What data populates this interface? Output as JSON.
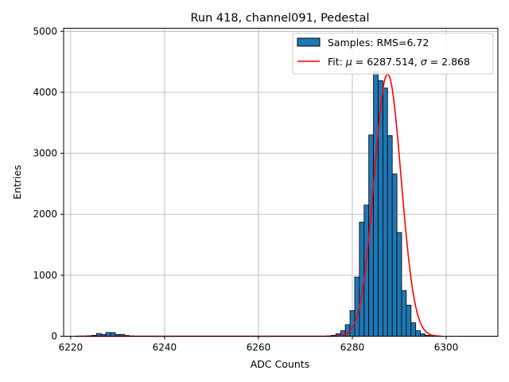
{
  "chart_data": {
    "type": "bar",
    "title": "Run 418, channel091, Pedestal",
    "xlabel": "ADC Counts",
    "ylabel": "Entries",
    "xlim": [
      6218.5,
      6311.0
    ],
    "ylim": [
      0,
      5050
    ],
    "xticks": [
      6220,
      6240,
      6260,
      6280,
      6300
    ],
    "yticks": [
      0,
      1000,
      2000,
      3000,
      4000,
      5000
    ],
    "grid": true,
    "legend_position": "top-right",
    "bin_width": 1,
    "series": [
      {
        "name": "Samples: RMS=6.72",
        "kind": "histogram",
        "color": "#1f77b4",
        "edgecolor": "#000000",
        "bins": [
          {
            "x": 6222,
            "value": 2
          },
          {
            "x": 6223,
            "value": 3
          },
          {
            "x": 6224,
            "value": 8
          },
          {
            "x": 6225,
            "value": 15
          },
          {
            "x": 6226,
            "value": 45
          },
          {
            "x": 6227,
            "value": 30
          },
          {
            "x": 6228,
            "value": 62
          },
          {
            "x": 6229,
            "value": 60
          },
          {
            "x": 6230,
            "value": 30
          },
          {
            "x": 6231,
            "value": 30
          },
          {
            "x": 6232,
            "value": 12
          },
          {
            "x": 6233,
            "value": 5
          },
          {
            "x": 6275,
            "value": 5
          },
          {
            "x": 6276,
            "value": 15
          },
          {
            "x": 6277,
            "value": 40
          },
          {
            "x": 6278,
            "value": 90
          },
          {
            "x": 6279,
            "value": 190
          },
          {
            "x": 6280,
            "value": 420
          },
          {
            "x": 6281,
            "value": 970
          },
          {
            "x": 6282,
            "value": 1870
          },
          {
            "x": 6283,
            "value": 2150
          },
          {
            "x": 6284,
            "value": 3300
          },
          {
            "x": 6285,
            "value": 4340
          },
          {
            "x": 6286,
            "value": 4190
          },
          {
            "x": 6287,
            "value": 4070
          },
          {
            "x": 6288,
            "value": 3290
          },
          {
            "x": 6289,
            "value": 2660
          },
          {
            "x": 6290,
            "value": 1700
          },
          {
            "x": 6291,
            "value": 750
          },
          {
            "x": 6292,
            "value": 510
          },
          {
            "x": 6293,
            "value": 220
          },
          {
            "x": 6294,
            "value": 90
          },
          {
            "x": 6295,
            "value": 40
          },
          {
            "x": 6296,
            "value": 15
          },
          {
            "x": 6297,
            "value": 5
          }
        ]
      },
      {
        "name": "Fit: μ = 6287.514, σ = 2.868",
        "kind": "gaussian_fit",
        "color": "#ff0000",
        "mu": 6287.514,
        "sigma": 2.868,
        "amplitude": 4300,
        "x_range": [
          6221,
          6299
        ]
      }
    ],
    "legend": {
      "samples_text": "Samples: RMS=6.72",
      "fit_prefix": "Fit: ",
      "mu_symbol": "μ",
      "mu_text": " = 6287.514, ",
      "sigma_symbol": "σ",
      "sigma_text": " = 2.868"
    }
  }
}
